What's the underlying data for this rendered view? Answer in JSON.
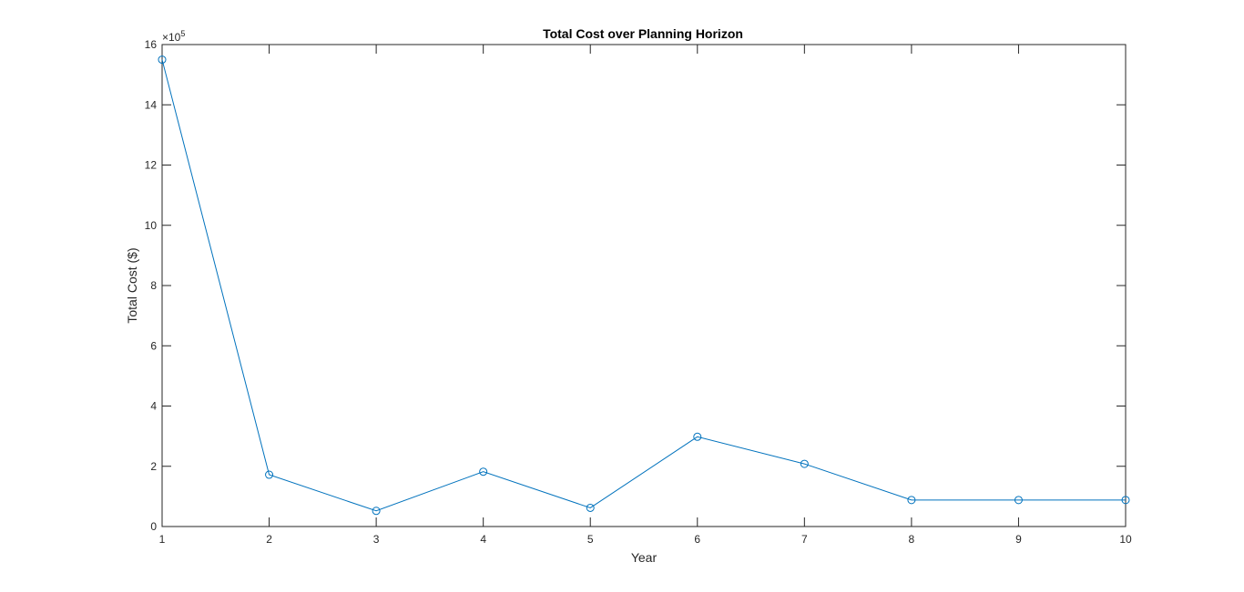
{
  "chart_data": {
    "type": "line",
    "title": "Total Cost over Planning Horizon",
    "xlabel": "Year",
    "ylabel": "Total Cost ($)",
    "x": [
      1,
      2,
      3,
      4,
      5,
      6,
      7,
      8,
      9,
      10
    ],
    "series": [
      {
        "values": [
          1550000,
          172000,
          52000,
          182000,
          62000,
          298000,
          208000,
          88000,
          88000,
          88000
        ],
        "color": "#0072BD",
        "marker": "circle"
      }
    ],
    "xlim": [
      1,
      10
    ],
    "ylim": [
      0,
      1600000
    ],
    "xticks": [
      1,
      2,
      3,
      4,
      5,
      6,
      7,
      8,
      9,
      10
    ],
    "yticks": [
      0,
      2,
      4,
      6,
      8,
      10,
      12,
      14,
      16
    ],
    "y_exponent_base": "×10",
    "y_exponent": "5",
    "grid": false,
    "box": true
  }
}
